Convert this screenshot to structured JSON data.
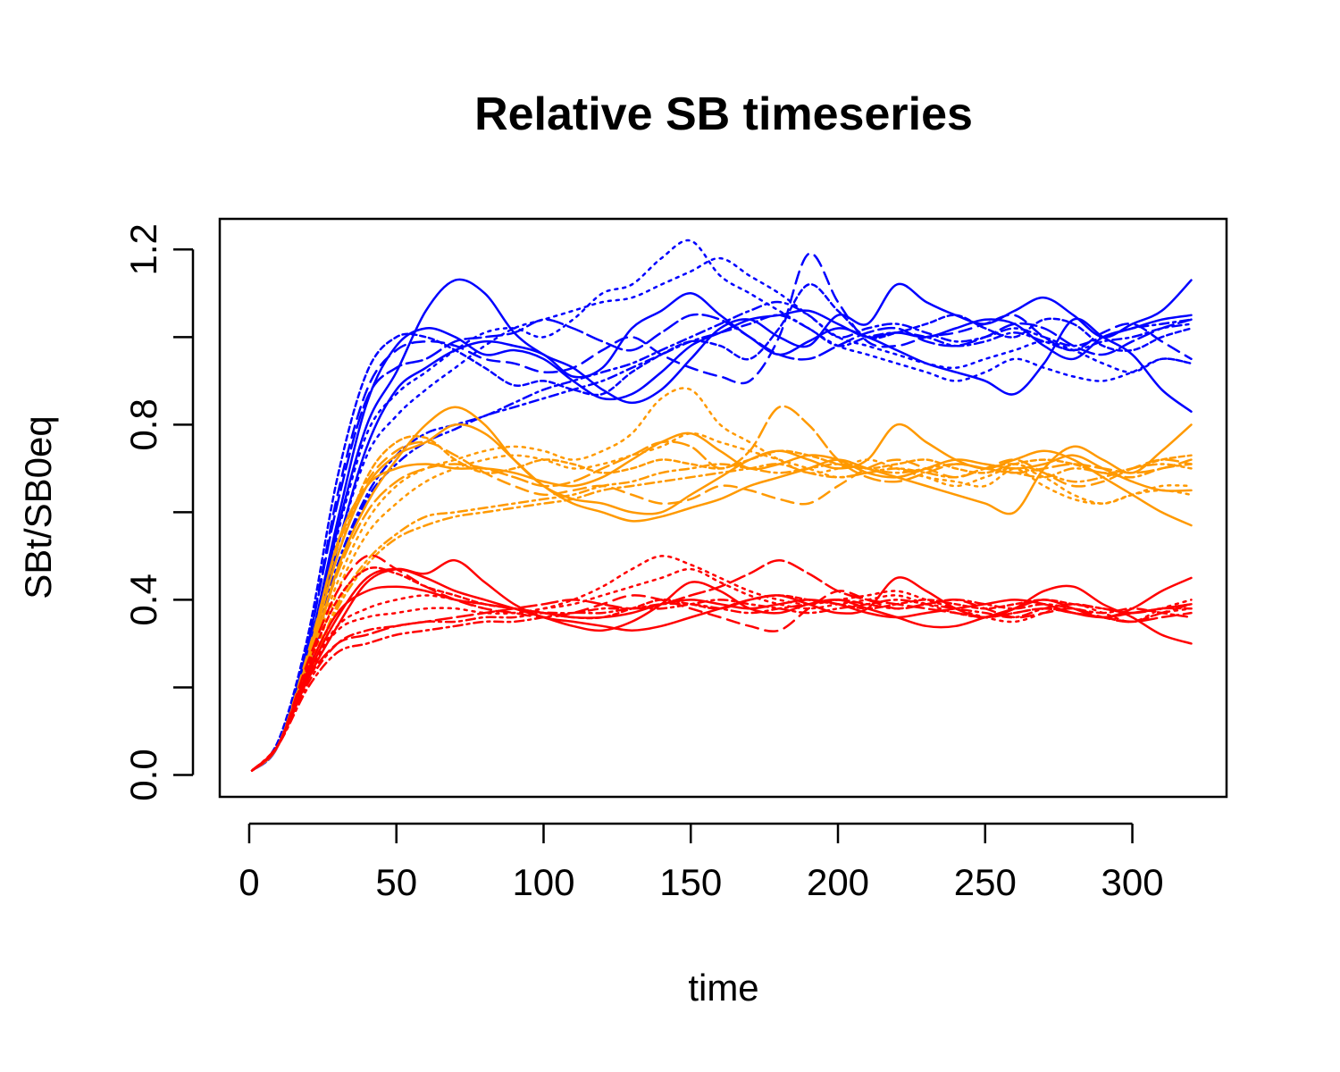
{
  "chart_data": {
    "type": "line",
    "title": "Relative SB timeseries",
    "xlabel": "time",
    "ylabel": "SBt/SB0eq",
    "xlim": [
      -10,
      332
    ],
    "ylim": [
      -0.05,
      1.27
    ],
    "x_ticks": [
      0,
      50,
      100,
      150,
      200,
      250,
      300
    ],
    "x_tick_labels": [
      "0",
      "50",
      "100",
      "150",
      "200",
      "250",
      "300"
    ],
    "y_ticks": [
      0.0,
      0.2,
      0.4,
      0.6,
      0.8,
      1.0,
      1.2
    ],
    "y_tick_labels": [
      "0.0",
      "",
      "0.4",
      "",
      "0.8",
      "",
      "1.2"
    ],
    "grid": false,
    "legend": "none",
    "x": [
      1,
      10,
      20,
      30,
      40,
      50,
      60,
      70,
      80,
      90,
      100,
      110,
      120,
      130,
      140,
      150,
      160,
      170,
      180,
      190,
      200,
      210,
      220,
      230,
      240,
      250,
      260,
      270,
      280,
      290,
      300,
      310,
      320
    ],
    "groups": [
      {
        "color": "#0000FF",
        "series_count": 10
      },
      {
        "color": "#FF9900",
        "series_count": 10
      },
      {
        "color": "#FF0000",
        "series_count": 10
      }
    ],
    "series": [
      {
        "color": "#0000FF",
        "dash": "solid",
        "values": [
          0.01,
          0.07,
          0.27,
          0.56,
          0.8,
          0.92,
          1.06,
          1.13,
          1.1,
          1.01,
          0.96,
          0.93,
          0.88,
          0.85,
          0.88,
          0.95,
          1.02,
          1.04,
          1.0,
          0.98,
          1.05,
          1.03,
          1.12,
          1.08,
          1.05,
          1.03,
          1.06,
          1.09,
          1.05,
          1.0,
          1.03,
          1.06,
          1.13
        ]
      },
      {
        "color": "#0000FF",
        "dash": "solid",
        "values": [
          0.01,
          0.07,
          0.26,
          0.52,
          0.75,
          0.88,
          0.93,
          0.97,
          0.99,
          0.98,
          0.96,
          0.91,
          0.93,
          1.02,
          1.06,
          1.1,
          1.05,
          1.0,
          0.96,
          0.99,
          1.02,
          1.0,
          0.97,
          0.94,
          0.92,
          0.9,
          0.87,
          0.94,
          1.04,
          1.0,
          0.96,
          0.88,
          0.83
        ]
      },
      {
        "color": "#0000FF",
        "dash": "solid",
        "values": [
          0.01,
          0.07,
          0.28,
          0.58,
          0.85,
          0.98,
          1.02,
          1.0,
          0.96,
          0.97,
          0.95,
          0.9,
          0.86,
          0.87,
          0.92,
          0.98,
          1.01,
          1.04,
          1.05,
          1.06,
          1.03,
          1.0,
          1.01,
          1.0,
          1.02,
          1.04,
          1.03,
          0.98,
          0.95,
          1.0,
          1.02,
          1.04,
          1.05
        ]
      },
      {
        "color": "#0000FF",
        "dash": "6,4",
        "values": [
          0.01,
          0.08,
          0.32,
          0.68,
          0.92,
          1.0,
          1.0,
          0.97,
          0.93,
          0.89,
          0.9,
          0.88,
          0.87,
          0.92,
          0.96,
          0.99,
          0.98,
          0.95,
          1.02,
          1.12,
          1.06,
          1.0,
          1.01,
          1.03,
          1.05,
          1.02,
          1.0,
          1.04,
          1.03,
          0.98,
          0.97,
          1.0,
          1.02
        ]
      },
      {
        "color": "#0000FF",
        "dash": "14,8",
        "values": [
          0.01,
          0.07,
          0.3,
          0.64,
          0.88,
          0.97,
          0.99,
          0.98,
          0.95,
          0.94,
          0.92,
          0.93,
          0.97,
          1.0,
          0.96,
          0.93,
          0.91,
          0.9,
          1.0,
          1.19,
          1.08,
          0.99,
          0.98,
          1.0,
          1.01,
          1.03,
          1.05,
          1.0,
          0.97,
          1.01,
          1.03,
          0.99,
          0.95
        ]
      },
      {
        "color": "#0000FF",
        "dash": "18,6",
        "values": [
          0.01,
          0.07,
          0.3,
          0.62,
          0.86,
          0.93,
          0.95,
          0.99,
          1.0,
          1.01,
          1.04,
          1.02,
          0.99,
          0.97,
          1.01,
          1.05,
          1.04,
          1.0,
          0.96,
          0.95,
          0.98,
          1.01,
          1.02,
          0.99,
          0.98,
          1.0,
          1.03,
          1.02,
          0.98,
          0.96,
          0.99,
          1.02,
          1.04
        ]
      },
      {
        "color": "#0000FF",
        "dash": "3,6",
        "values": [
          0.01,
          0.07,
          0.27,
          0.55,
          0.78,
          0.87,
          0.92,
          0.97,
          1.01,
          1.02,
          1.0,
          1.04,
          1.1,
          1.12,
          1.18,
          1.22,
          1.14,
          1.1,
          1.06,
          1.02,
          0.98,
          0.96,
          0.94,
          0.92,
          0.9,
          0.92,
          0.95,
          0.93,
          0.91,
          0.9,
          0.92,
          0.95,
          0.94
        ]
      },
      {
        "color": "#0000FF",
        "dash": "3,6",
        "values": [
          0.01,
          0.07,
          0.26,
          0.52,
          0.73,
          0.82,
          0.88,
          0.93,
          0.98,
          1.02,
          1.04,
          1.06,
          1.08,
          1.09,
          1.12,
          1.15,
          1.18,
          1.14,
          1.1,
          1.05,
          1.0,
          0.98,
          0.96,
          0.94,
          0.93,
          0.95,
          0.97,
          0.99,
          0.97,
          0.94,
          0.92,
          0.95,
          0.94
        ]
      },
      {
        "color": "#0000FF",
        "dash": "10,5,3,5",
        "values": [
          0.01,
          0.07,
          0.25,
          0.48,
          0.64,
          0.73,
          0.78,
          0.8,
          0.82,
          0.85,
          0.88,
          0.9,
          0.92,
          0.94,
          0.97,
          1.0,
          1.03,
          1.06,
          1.08,
          1.05,
          1.0,
          1.02,
          1.03,
          1.01,
          0.99,
          1.0,
          1.02,
          1.0,
          0.98,
          1.0,
          1.02,
          1.03,
          1.04
        ]
      },
      {
        "color": "#0000FF",
        "dash": "10,5,3,5",
        "values": [
          0.01,
          0.07,
          0.24,
          0.47,
          0.63,
          0.71,
          0.76,
          0.79,
          0.82,
          0.84,
          0.86,
          0.88,
          0.9,
          0.93,
          0.96,
          0.99,
          1.01,
          1.03,
          1.05,
          1.02,
          0.98,
          1.0,
          1.01,
          1.0,
          0.98,
          0.99,
          1.01,
          0.99,
          0.97,
          0.99,
          1.0,
          1.02,
          1.03
        ]
      },
      {
        "color": "#FF9900",
        "dash": "solid",
        "values": [
          0.01,
          0.07,
          0.25,
          0.47,
          0.62,
          0.72,
          0.8,
          0.84,
          0.8,
          0.72,
          0.66,
          0.63,
          0.62,
          0.6,
          0.6,
          0.64,
          0.68,
          0.72,
          0.74,
          0.72,
          0.7,
          0.72,
          0.8,
          0.76,
          0.72,
          0.7,
          0.72,
          0.74,
          0.72,
          0.68,
          0.64,
          0.6,
          0.57
        ]
      },
      {
        "color": "#FF9900",
        "dash": "solid",
        "values": [
          0.01,
          0.07,
          0.26,
          0.5,
          0.66,
          0.73,
          0.76,
          0.8,
          0.78,
          0.72,
          0.66,
          0.62,
          0.6,
          0.58,
          0.59,
          0.61,
          0.63,
          0.66,
          0.68,
          0.7,
          0.72,
          0.7,
          0.68,
          0.66,
          0.64,
          0.62,
          0.6,
          0.7,
          0.75,
          0.72,
          0.69,
          0.74,
          0.8
        ]
      },
      {
        "color": "#FF9900",
        "dash": "solid",
        "values": [
          0.01,
          0.07,
          0.27,
          0.53,
          0.66,
          0.7,
          0.71,
          0.7,
          0.7,
          0.69,
          0.67,
          0.66,
          0.68,
          0.72,
          0.76,
          0.78,
          0.74,
          0.7,
          0.71,
          0.73,
          0.72,
          0.69,
          0.68,
          0.7,
          0.72,
          0.71,
          0.7,
          0.71,
          0.73,
          0.7,
          0.67,
          0.65,
          0.65
        ]
      },
      {
        "color": "#FF9900",
        "dash": "6,4",
        "values": [
          0.01,
          0.07,
          0.27,
          0.5,
          0.68,
          0.76,
          0.77,
          0.72,
          0.69,
          0.7,
          0.72,
          0.71,
          0.69,
          0.7,
          0.72,
          0.71,
          0.7,
          0.72,
          0.74,
          0.73,
          0.71,
          0.7,
          0.71,
          0.72,
          0.7,
          0.69,
          0.71,
          0.72,
          0.71,
          0.69,
          0.7,
          0.72,
          0.73
        ]
      },
      {
        "color": "#FF9900",
        "dash": "14,8",
        "values": [
          0.01,
          0.07,
          0.28,
          0.52,
          0.67,
          0.74,
          0.76,
          0.73,
          0.69,
          0.66,
          0.64,
          0.65,
          0.66,
          0.64,
          0.62,
          0.63,
          0.66,
          0.65,
          0.63,
          0.62,
          0.66,
          0.7,
          0.72,
          0.7,
          0.68,
          0.7,
          0.72,
          0.69,
          0.66,
          0.67,
          0.7,
          0.72,
          0.71
        ]
      },
      {
        "color": "#FF9900",
        "dash": "18,6",
        "values": [
          0.01,
          0.07,
          0.25,
          0.46,
          0.6,
          0.67,
          0.7,
          0.71,
          0.7,
          0.68,
          0.66,
          0.67,
          0.7,
          0.73,
          0.76,
          0.75,
          0.7,
          0.74,
          0.84,
          0.8,
          0.72,
          0.68,
          0.67,
          0.69,
          0.71,
          0.7,
          0.69,
          0.7,
          0.71,
          0.7,
          0.69,
          0.7,
          0.72
        ]
      },
      {
        "color": "#FF9900",
        "dash": "3,6",
        "values": [
          0.01,
          0.07,
          0.24,
          0.44,
          0.58,
          0.66,
          0.7,
          0.72,
          0.74,
          0.75,
          0.74,
          0.72,
          0.74,
          0.78,
          0.86,
          0.88,
          0.8,
          0.76,
          0.72,
          0.69,
          0.7,
          0.72,
          0.7,
          0.68,
          0.67,
          0.66,
          0.7,
          0.68,
          0.64,
          0.62,
          0.64,
          0.66,
          0.66
        ]
      },
      {
        "color": "#FF9900",
        "dash": "3,6",
        "values": [
          0.01,
          0.07,
          0.23,
          0.42,
          0.55,
          0.62,
          0.67,
          0.7,
          0.72,
          0.73,
          0.72,
          0.7,
          0.71,
          0.73,
          0.75,
          0.78,
          0.76,
          0.74,
          0.72,
          0.7,
          0.68,
          0.69,
          0.7,
          0.68,
          0.66,
          0.68,
          0.7,
          0.66,
          0.63,
          0.62,
          0.64,
          0.65,
          0.64
        ]
      },
      {
        "color": "#FF9900",
        "dash": "10,5,3,5",
        "values": [
          0.01,
          0.07,
          0.22,
          0.39,
          0.49,
          0.55,
          0.59,
          0.6,
          0.61,
          0.62,
          0.63,
          0.64,
          0.66,
          0.67,
          0.69,
          0.7,
          0.71,
          0.7,
          0.69,
          0.7,
          0.71,
          0.7,
          0.69,
          0.7,
          0.71,
          0.7,
          0.69,
          0.68,
          0.7,
          0.69,
          0.68,
          0.7,
          0.71
        ]
      },
      {
        "color": "#FF9900",
        "dash": "10,5,3,5",
        "values": [
          0.01,
          0.07,
          0.22,
          0.38,
          0.48,
          0.54,
          0.57,
          0.59,
          0.6,
          0.61,
          0.62,
          0.63,
          0.65,
          0.66,
          0.67,
          0.68,
          0.69,
          0.7,
          0.71,
          0.69,
          0.68,
          0.69,
          0.7,
          0.69,
          0.68,
          0.7,
          0.71,
          0.69,
          0.67,
          0.68,
          0.7,
          0.71,
          0.7
        ]
      },
      {
        "color": "#FF0000",
        "dash": "solid",
        "values": [
          0.01,
          0.07,
          0.22,
          0.34,
          0.44,
          0.47,
          0.46,
          0.49,
          0.44,
          0.39,
          0.36,
          0.35,
          0.34,
          0.33,
          0.34,
          0.36,
          0.38,
          0.4,
          0.41,
          0.39,
          0.37,
          0.38,
          0.45,
          0.42,
          0.38,
          0.36,
          0.38,
          0.42,
          0.43,
          0.39,
          0.36,
          0.32,
          0.3
        ]
      },
      {
        "color": "#FF0000",
        "dash": "solid",
        "values": [
          0.01,
          0.07,
          0.23,
          0.36,
          0.45,
          0.47,
          0.45,
          0.42,
          0.4,
          0.38,
          0.36,
          0.34,
          0.33,
          0.35,
          0.39,
          0.44,
          0.42,
          0.38,
          0.37,
          0.39,
          0.4,
          0.38,
          0.36,
          0.34,
          0.34,
          0.36,
          0.38,
          0.4,
          0.38,
          0.36,
          0.38,
          0.42,
          0.45
        ]
      },
      {
        "color": "#FF0000",
        "dash": "solid",
        "values": [
          0.01,
          0.07,
          0.24,
          0.37,
          0.42,
          0.43,
          0.42,
          0.4,
          0.39,
          0.38,
          0.37,
          0.36,
          0.36,
          0.37,
          0.39,
          0.4,
          0.39,
          0.38,
          0.39,
          0.4,
          0.39,
          0.37,
          0.36,
          0.37,
          0.38,
          0.39,
          0.4,
          0.39,
          0.37,
          0.36,
          0.37,
          0.38,
          0.39
        ]
      },
      {
        "color": "#FF0000",
        "dash": "6,4",
        "values": [
          0.01,
          0.07,
          0.25,
          0.4,
          0.47,
          0.46,
          0.43,
          0.41,
          0.39,
          0.38,
          0.37,
          0.36,
          0.36,
          0.38,
          0.4,
          0.39,
          0.38,
          0.4,
          0.41,
          0.4,
          0.39,
          0.38,
          0.39,
          0.4,
          0.39,
          0.38,
          0.39,
          0.4,
          0.39,
          0.38,
          0.37,
          0.38,
          0.39
        ]
      },
      {
        "color": "#FF0000",
        "dash": "14,8",
        "values": [
          0.01,
          0.07,
          0.26,
          0.42,
          0.5,
          0.47,
          0.43,
          0.4,
          0.38,
          0.37,
          0.36,
          0.37,
          0.39,
          0.41,
          0.4,
          0.38,
          0.36,
          0.34,
          0.33,
          0.38,
          0.42,
          0.4,
          0.38,
          0.39,
          0.4,
          0.38,
          0.36,
          0.37,
          0.38,
          0.36,
          0.35,
          0.37,
          0.39
        ]
      },
      {
        "color": "#FF0000",
        "dash": "18,6",
        "values": [
          0.01,
          0.07,
          0.22,
          0.3,
          0.32,
          0.34,
          0.35,
          0.36,
          0.37,
          0.38,
          0.39,
          0.4,
          0.39,
          0.38,
          0.39,
          0.41,
          0.43,
          0.46,
          0.49,
          0.46,
          0.42,
          0.4,
          0.39,
          0.38,
          0.37,
          0.36,
          0.37,
          0.38,
          0.37,
          0.36,
          0.35,
          0.36,
          0.37
        ]
      },
      {
        "color": "#FF0000",
        "dash": "3,6",
        "values": [
          0.01,
          0.07,
          0.23,
          0.34,
          0.38,
          0.4,
          0.41,
          0.4,
          0.38,
          0.37,
          0.38,
          0.4,
          0.43,
          0.47,
          0.5,
          0.48,
          0.45,
          0.42,
          0.4,
          0.39,
          0.4,
          0.41,
          0.42,
          0.4,
          0.38,
          0.36,
          0.35,
          0.37,
          0.39,
          0.37,
          0.35,
          0.38,
          0.4
        ]
      },
      {
        "color": "#FF0000",
        "dash": "3,6",
        "values": [
          0.01,
          0.07,
          0.23,
          0.33,
          0.36,
          0.37,
          0.38,
          0.38,
          0.37,
          0.37,
          0.38,
          0.39,
          0.41,
          0.43,
          0.45,
          0.47,
          0.44,
          0.41,
          0.39,
          0.38,
          0.39,
          0.4,
          0.41,
          0.39,
          0.37,
          0.36,
          0.37,
          0.38,
          0.37,
          0.36,
          0.35,
          0.37,
          0.38
        ]
      },
      {
        "color": "#FF0000",
        "dash": "10,5,3,5",
        "values": [
          0.01,
          0.07,
          0.2,
          0.28,
          0.3,
          0.32,
          0.33,
          0.34,
          0.35,
          0.35,
          0.36,
          0.37,
          0.37,
          0.38,
          0.38,
          0.39,
          0.4,
          0.39,
          0.38,
          0.37,
          0.38,
          0.39,
          0.4,
          0.39,
          0.38,
          0.37,
          0.36,
          0.38,
          0.39,
          0.38,
          0.37,
          0.38,
          0.38
        ]
      },
      {
        "color": "#FF0000",
        "dash": "10,5,3,5",
        "values": [
          0.01,
          0.07,
          0.21,
          0.3,
          0.33,
          0.34,
          0.35,
          0.35,
          0.36,
          0.36,
          0.37,
          0.37,
          0.38,
          0.38,
          0.39,
          0.39,
          0.38,
          0.37,
          0.38,
          0.39,
          0.4,
          0.39,
          0.38,
          0.39,
          0.4,
          0.39,
          0.38,
          0.39,
          0.38,
          0.37,
          0.38,
          0.37,
          0.36
        ]
      }
    ]
  }
}
